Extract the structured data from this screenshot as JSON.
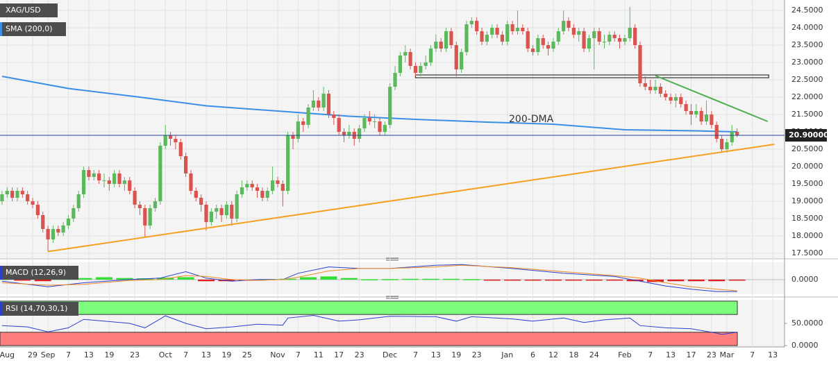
{
  "chart_data": [
    {
      "type": "candlestick",
      "title": "XAG/USD",
      "up_color": "#5cb85c",
      "down_color": "#d9534f",
      "grid": true,
      "open": [
        19.0,
        19.2,
        19.3,
        19.1,
        19.3,
        19.2,
        19.0,
        18.9,
        18.6,
        18.2,
        17.9,
        18.2,
        18.1,
        18.3,
        18.5,
        18.8,
        19.2,
        19.9,
        19.7,
        19.8,
        19.6,
        19.6,
        19.5,
        19.8,
        19.5,
        19.6,
        19.3,
        18.9,
        18.8,
        18.3,
        18.8,
        19.0,
        20.6,
        20.9,
        20.8,
        20.7,
        20.3,
        19.8,
        19.3,
        19.1,
        18.9,
        18.4,
        18.7,
        18.8,
        18.6,
        18.9,
        18.5,
        19.2,
        19.4,
        19.5,
        19.4,
        19.3,
        19.1,
        19.3,
        19.6,
        19.5,
        19.3,
        20.9,
        20.8,
        21.3,
        21.2,
        21.7,
        21.9,
        21.7,
        22.1,
        21.5,
        21.4,
        21.0,
        20.9,
        21.0,
        20.8,
        21.1,
        21.4,
        21.3,
        21.3,
        21.0,
        21.2,
        22.3,
        22.7,
        23.2,
        23.3,
        22.9,
        22.7,
        22.9,
        23.0,
        23.4,
        23.6,
        23.4,
        23.9,
        23.5,
        22.8,
        23.3,
        24.1,
        24.2,
        23.9,
        23.6,
        23.8,
        24.0,
        23.8,
        23.6,
        24.1,
        23.9,
        24.0,
        23.9,
        23.4,
        23.3,
        23.7,
        23.5,
        23.4,
        23.6,
        23.9,
        24.2,
        24.0,
        23.8,
        23.9,
        23.4,
        23.7,
        23.9,
        23.6,
        23.6,
        23.8,
        23.7,
        23.6,
        23.7,
        24.0,
        23.5,
        22.4,
        22.3,
        22.2,
        22.3,
        22.1,
        22.0,
        21.9,
        22.0,
        21.8,
        21.6,
        21.5,
        21.6,
        21.3,
        21.5,
        21.2,
        20.8,
        20.5,
        20.7,
        21.0
      ],
      "high": [
        19.3,
        19.4,
        19.4,
        19.4,
        19.4,
        19.3,
        19.1,
        19.0,
        18.7,
        18.3,
        18.3,
        18.3,
        18.4,
        18.6,
        18.9,
        19.3,
        20.0,
        20.0,
        19.9,
        19.9,
        19.8,
        19.7,
        19.9,
        19.9,
        19.7,
        19.7,
        19.4,
        19.0,
        18.9,
        18.9,
        19.1,
        20.7,
        21.2,
        21.0,
        20.9,
        20.8,
        20.4,
        19.9,
        19.4,
        19.2,
        19.0,
        18.8,
        18.9,
        18.9,
        19.0,
        19.0,
        19.3,
        19.6,
        19.6,
        19.6,
        19.5,
        19.4,
        19.4,
        20.0,
        19.7,
        19.6,
        21.0,
        21.0,
        21.5,
        21.4,
        21.8,
        22.2,
        22.0,
        22.3,
        22.2,
        21.6,
        21.5,
        21.1,
        21.2,
        21.1,
        21.2,
        21.5,
        21.6,
        21.5,
        21.4,
        21.3,
        22.4,
        22.9,
        23.3,
        23.5,
        23.4,
        23.0,
        23.0,
        23.2,
        23.5,
        23.8,
        23.7,
        24.0,
        24.0,
        23.6,
        23.4,
        24.2,
        24.3,
        24.3,
        24.0,
        23.9,
        24.1,
        24.1,
        23.9,
        24.2,
        24.2,
        24.5,
        24.1,
        24.0,
        23.5,
        23.8,
        23.8,
        23.6,
        23.7,
        24.0,
        24.5,
        24.3,
        24.1,
        24.0,
        24.0,
        23.8,
        24.0,
        24.0,
        23.8,
        23.9,
        23.9,
        23.8,
        23.8,
        24.6,
        24.1,
        23.6,
        22.6,
        22.5,
        22.5,
        22.4,
        22.2,
        22.1,
        22.1,
        22.1,
        21.9,
        21.8,
        21.8,
        21.7,
        21.9,
        21.6,
        21.3,
        20.9,
        20.8,
        21.2,
        21.1
      ],
      "low": [
        18.9,
        19.1,
        19.0,
        19.0,
        19.1,
        18.9,
        18.8,
        18.5,
        18.1,
        17.55,
        17.8,
        18.0,
        18.0,
        18.2,
        18.4,
        18.7,
        19.1,
        19.6,
        19.6,
        19.5,
        19.4,
        19.3,
        19.4,
        19.4,
        19.3,
        19.2,
        18.8,
        18.6,
        17.95,
        18.2,
        18.7,
        18.9,
        20.5,
        20.6,
        20.5,
        20.2,
        19.7,
        19.2,
        19.0,
        18.7,
        18.15,
        18.3,
        18.5,
        18.4,
        18.5,
        18.3,
        18.4,
        19.1,
        19.3,
        19.3,
        19.1,
        19.0,
        19.0,
        19.2,
        19.4,
        18.85,
        19.2,
        20.5,
        20.7,
        21.0,
        21.1,
        21.6,
        21.6,
        21.6,
        21.4,
        21.2,
        20.9,
        20.7,
        20.8,
        20.6,
        20.7,
        21.0,
        21.2,
        21.1,
        20.9,
        20.9,
        21.1,
        22.2,
        22.6,
        23.0,
        22.8,
        22.6,
        22.6,
        22.8,
        22.9,
        23.3,
        23.3,
        23.3,
        23.4,
        22.6,
        22.7,
        23.2,
        24.0,
        23.8,
        23.5,
        23.5,
        23.7,
        23.7,
        23.5,
        23.5,
        23.8,
        23.8,
        23.8,
        23.3,
        23.2,
        23.2,
        23.4,
        23.2,
        23.3,
        23.5,
        23.8,
        23.9,
        23.7,
        23.6,
        23.3,
        23.3,
        22.8,
        23.5,
        23.4,
        23.5,
        23.6,
        23.4,
        23.5,
        23.6,
        23.4,
        22.3,
        22.2,
        22.1,
        22.1,
        22.0,
        21.9,
        21.8,
        21.7,
        21.7,
        21.5,
        21.2,
        21.4,
        21.2,
        21.2,
        21.1,
        20.7,
        20.4,
        20.4,
        20.6,
        20.85
      ],
      "close": [
        19.2,
        19.3,
        19.1,
        19.3,
        19.2,
        19.0,
        18.9,
        18.6,
        18.2,
        17.9,
        18.2,
        18.1,
        18.3,
        18.5,
        18.8,
        19.2,
        19.9,
        19.7,
        19.8,
        19.6,
        19.6,
        19.5,
        19.8,
        19.5,
        19.6,
        19.3,
        18.9,
        18.8,
        18.3,
        18.8,
        19.0,
        20.6,
        20.9,
        20.8,
        20.7,
        20.3,
        19.8,
        19.3,
        19.1,
        18.9,
        18.4,
        18.7,
        18.8,
        18.6,
        18.9,
        18.5,
        19.2,
        19.4,
        19.5,
        19.4,
        19.3,
        19.1,
        19.3,
        19.6,
        19.5,
        19.3,
        20.9,
        20.8,
        21.3,
        21.2,
        21.7,
        21.9,
        21.7,
        22.1,
        21.5,
        21.4,
        21.0,
        20.9,
        21.0,
        20.8,
        21.1,
        21.4,
        21.3,
        21.3,
        21.0,
        21.2,
        22.3,
        22.7,
        23.2,
        23.3,
        22.9,
        22.7,
        22.9,
        23.0,
        23.4,
        23.6,
        23.4,
        23.9,
        23.5,
        22.8,
        23.3,
        24.1,
        24.2,
        23.9,
        23.6,
        23.8,
        24.0,
        23.8,
        23.6,
        24.1,
        23.9,
        24.0,
        23.9,
        23.4,
        23.3,
        23.7,
        23.5,
        23.4,
        23.6,
        23.9,
        24.2,
        24.0,
        23.8,
        23.9,
        23.4,
        23.7,
        23.9,
        23.6,
        23.6,
        23.8,
        23.7,
        23.6,
        23.7,
        24.0,
        23.5,
        22.4,
        22.3,
        22.2,
        22.3,
        22.1,
        22.0,
        21.9,
        22.0,
        21.8,
        21.6,
        21.5,
        21.6,
        21.3,
        21.5,
        21.2,
        20.8,
        20.5,
        20.7,
        21.0,
        20.9
      ],
      "xlim": [
        -0.4,
        153.3
      ],
      "xticks": [
        {
          "value": 1,
          "label": "Aug"
        },
        {
          "value": 6,
          "label": "29"
        },
        {
          "value": 9,
          "label": "Sep"
        },
        {
          "value": 13,
          "label": "7"
        },
        {
          "value": 17,
          "label": "13"
        },
        {
          "value": 21,
          "label": "19"
        },
        {
          "value": 26,
          "label": "23"
        },
        {
          "value": 32,
          "label": "Oct"
        },
        {
          "value": 36,
          "label": "7"
        },
        {
          "value": 40,
          "label": "13"
        },
        {
          "value": 44,
          "label": "19"
        },
        {
          "value": 48,
          "label": "25"
        },
        {
          "value": 54,
          "label": "Nov"
        },
        {
          "value": 58,
          "label": "7"
        },
        {
          "value": 62,
          "label": "11"
        },
        {
          "value": 66,
          "label": "17"
        },
        {
          "value": 70,
          "label": "23"
        },
        {
          "value": 76,
          "label": "Dec"
        },
        {
          "value": 81,
          "label": "7"
        },
        {
          "value": 85,
          "label": "13"
        },
        {
          "value": 89,
          "label": "19"
        },
        {
          "value": 93,
          "label": "23"
        },
        {
          "value": 99,
          "label": "Jan"
        },
        {
          "value": 104,
          "label": "6"
        },
        {
          "value": 108,
          "label": "12"
        },
        {
          "value": 112,
          "label": "18"
        },
        {
          "value": 116,
          "label": "24"
        },
        {
          "value": 122,
          "label": "Feb"
        },
        {
          "value": 127,
          "label": "7"
        },
        {
          "value": 131,
          "label": "13"
        },
        {
          "value": 135,
          "label": "17"
        },
        {
          "value": 139,
          "label": "23"
        },
        {
          "value": 142,
          "label": "Mar"
        },
        {
          "value": 147,
          "label": "7"
        },
        {
          "value": 151,
          "label": "13"
        }
      ],
      "ylim": [
        17.36,
        24.8
      ],
      "yticks": [
        {
          "value": 17.5,
          "label": "17.5000"
        },
        {
          "value": 18,
          "label": "18.0000"
        },
        {
          "value": 18.5,
          "label": "18.5000"
        },
        {
          "value": 19,
          "label": "19.0000"
        },
        {
          "value": 19.5,
          "label": "19.5000"
        },
        {
          "value": 20,
          "label": "20.0000"
        },
        {
          "value": 20.5,
          "label": "20.5000"
        },
        {
          "value": 21,
          "label": "21.0000"
        },
        {
          "value": 21.5,
          "label": "21.5000"
        },
        {
          "value": 22,
          "label": "22.0000"
        },
        {
          "value": 22.5,
          "label": "22.5000"
        },
        {
          "value": 23,
          "label": "23.0000"
        },
        {
          "value": 23.5,
          "label": "23.5000"
        },
        {
          "value": 24,
          "label": "24.0000"
        },
        {
          "value": 24.5,
          "label": "24.5000"
        }
      ],
      "last_price": {
        "value": 20.9,
        "label": "20.90000"
      },
      "series": [
        {
          "name": "SMA (200,0)",
          "color": "#3a8ee6",
          "x": [
            0,
            13,
            27,
            40,
            54,
            68,
            81,
            95,
            108,
            122,
            136,
            144
          ],
          "values": [
            22.6,
            22.25,
            22.0,
            21.75,
            21.6,
            21.45,
            21.36,
            21.28,
            21.22,
            21.06,
            21.03,
            21.0
          ]
        }
      ],
      "annotations": [
        {
          "text": "200-DMA"
        }
      ],
      "trendlines": [
        {
          "color": "#f5a020",
          "x": [
            9,
            151.3
          ],
          "values": [
            17.55,
            20.64
          ]
        },
        {
          "color": "#4cae4c",
          "x": [
            128,
            150
          ],
          "values": [
            22.62,
            21.3
          ]
        }
      ],
      "zones": [
        {
          "x": [
            81,
            150.2
          ],
          "values": [
            22.56,
            22.64
          ]
        }
      ]
    },
    {
      "type": "macd",
      "title": "MACD (12,26,9)",
      "xlim": [
        -0.4,
        153.3
      ],
      "ylim": [
        -0.92,
        1.09
      ],
      "yticks": [
        {
          "value": 0,
          "label": "0.0000"
        }
      ],
      "series": [
        {
          "color": "#2a3fd0",
          "x": [
            0,
            9,
            16,
            25,
            31,
            36,
            40,
            45,
            50,
            55,
            58,
            64,
            70,
            76,
            85,
            90,
            100,
            110,
            120,
            125,
            130,
            135,
            140,
            144
          ],
          "values": [
            -0.1,
            -0.45,
            -0.2,
            0.0,
            0.1,
            0.5,
            0.1,
            -0.1,
            0.0,
            0.0,
            0.4,
            0.8,
            0.7,
            0.7,
            0.9,
            0.95,
            0.7,
            0.4,
            0.2,
            -0.1,
            -0.4,
            -0.6,
            -0.75,
            -0.75
          ]
        },
        {
          "color": "#f08a24",
          "x": [
            0,
            9,
            16,
            25,
            31,
            36,
            40,
            45,
            50,
            55,
            58,
            64,
            70,
            76,
            85,
            90,
            100,
            110,
            120,
            125,
            130,
            135,
            140,
            144
          ],
          "values": [
            -0.2,
            -0.35,
            -0.3,
            -0.05,
            0.0,
            0.25,
            0.2,
            0.0,
            -0.05,
            0.0,
            0.15,
            0.55,
            0.7,
            0.7,
            0.8,
            0.9,
            0.75,
            0.5,
            0.25,
            0.1,
            -0.2,
            -0.45,
            -0.6,
            -0.7
          ]
        }
      ],
      "histogram": {
        "pos_color": "#33dd33",
        "neg_color": "#e02020",
        "x": [
          0,
          4,
          8,
          12,
          16,
          20,
          24,
          28,
          32,
          36,
          40,
          44,
          48,
          52,
          56,
          60,
          64,
          68,
          72,
          76,
          80,
          84,
          88,
          92,
          96,
          100,
          104,
          108,
          112,
          116,
          120,
          124,
          128,
          132,
          136,
          140,
          144
        ],
        "values": [
          0.05,
          -0.05,
          -0.1,
          0.05,
          0.1,
          0.15,
          0.1,
          0.08,
          0.12,
          0.15,
          -0.1,
          -0.1,
          -0.05,
          0.03,
          0.05,
          0.15,
          0.2,
          0.1,
          0.02,
          0.03,
          0.05,
          0.05,
          0.05,
          0.03,
          -0.02,
          -0.03,
          -0.05,
          -0.05,
          -0.05,
          -0.05,
          -0.05,
          -0.1,
          -0.15,
          -0.1,
          -0.1,
          -0.1,
          -0.05
        ]
      }
    },
    {
      "type": "rsi",
      "title": "RSI (14,70,30,1)",
      "xlim": [
        -0.4,
        153.3
      ],
      "ylim": [
        -3.1,
        103.1
      ],
      "yticks": [
        {
          "value": 0,
          "label": "0.0000"
        },
        {
          "value": 50,
          "label": "50.0000"
        }
      ],
      "bands": [
        {
          "range": [
            70,
            100
          ],
          "color": "#7dfc7d"
        },
        {
          "range": [
            0,
            30
          ],
          "color": "#ff7f7f"
        }
      ],
      "series": [
        {
          "color": "#2a3fd0",
          "x": [
            0,
            5,
            9,
            13,
            16,
            20,
            25,
            28,
            31,
            32,
            36,
            40,
            45,
            50,
            55,
            56,
            61,
            66,
            70,
            76,
            85,
            89,
            92,
            100,
            104,
            110,
            114,
            118,
            123,
            125,
            130,
            135,
            140,
            141,
            144
          ],
          "values": [
            45,
            42,
            31,
            40,
            59,
            55,
            50,
            40,
            60,
            67,
            50,
            38,
            42,
            48,
            46,
            62,
            68,
            55,
            58,
            66,
            65,
            55,
            65,
            60,
            55,
            62,
            52,
            58,
            62,
            45,
            40,
            38,
            28,
            25,
            30
          ]
        }
      ]
    }
  ]
}
